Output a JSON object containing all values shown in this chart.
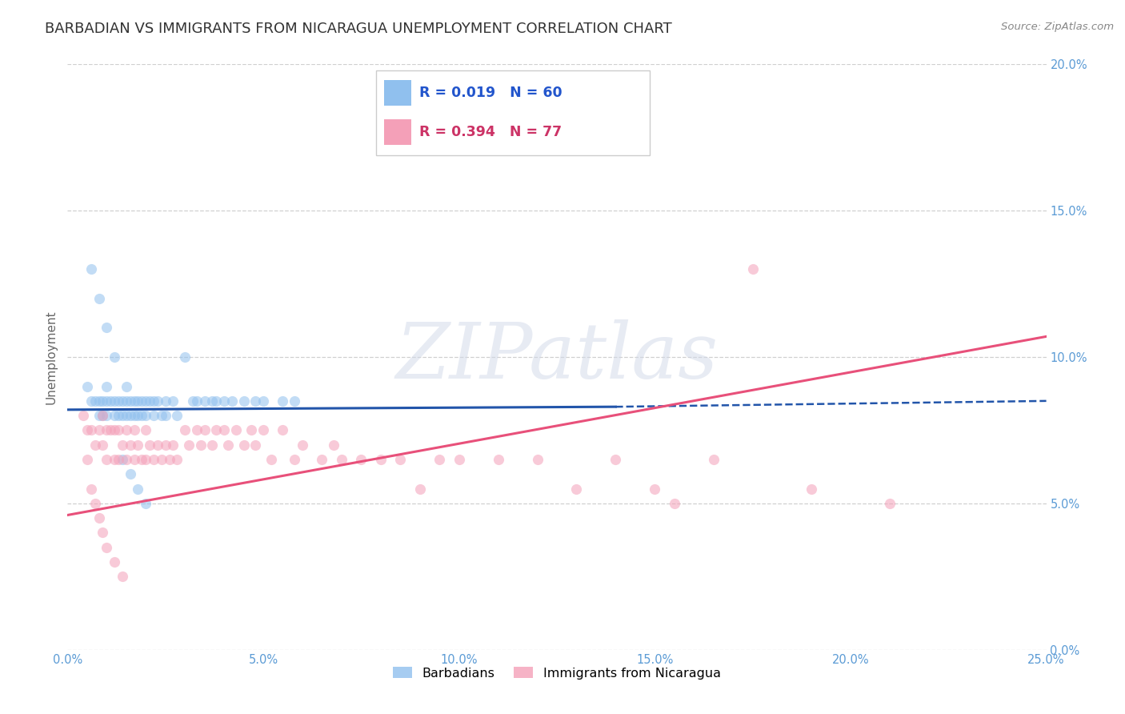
{
  "title": "BARBADIAN VS IMMIGRANTS FROM NICARAGUA UNEMPLOYMENT CORRELATION CHART",
  "source": "Source: ZipAtlas.com",
  "ylabel": "Unemployment",
  "xlim": [
    0.0,
    0.25
  ],
  "ylim": [
    0.0,
    0.2
  ],
  "xticks": [
    0.0,
    0.05,
    0.1,
    0.15,
    0.2,
    0.25
  ],
  "yticks": [
    0.0,
    0.05,
    0.1,
    0.15,
    0.2
  ],
  "xtick_labels": [
    "0.0%",
    "5.0%",
    "10.0%",
    "15.0%",
    "20.0%",
    "25.0%"
  ],
  "ytick_labels": [
    "0.0%",
    "5.0%",
    "10.0%",
    "15.0%",
    "20.0%"
  ],
  "legend_entries": [
    {
      "label": "Barbadians",
      "color": "#90c0ee",
      "R": "0.019",
      "N": "60"
    },
    {
      "label": "Immigrants from Nicaragua",
      "color": "#f4a0b8",
      "R": "0.394",
      "N": "77"
    }
  ],
  "blue_scatter_x": [
    0.005,
    0.006,
    0.007,
    0.008,
    0.008,
    0.009,
    0.009,
    0.01,
    0.01,
    0.01,
    0.011,
    0.012,
    0.012,
    0.013,
    0.013,
    0.014,
    0.014,
    0.015,
    0.015,
    0.015,
    0.016,
    0.016,
    0.017,
    0.017,
    0.018,
    0.018,
    0.019,
    0.019,
    0.02,
    0.02,
    0.021,
    0.022,
    0.022,
    0.023,
    0.024,
    0.025,
    0.025,
    0.027,
    0.028,
    0.03,
    0.032,
    0.033,
    0.035,
    0.037,
    0.038,
    0.04,
    0.042,
    0.045,
    0.048,
    0.05,
    0.055,
    0.058,
    0.006,
    0.008,
    0.01,
    0.012,
    0.014,
    0.016,
    0.018,
    0.02
  ],
  "blue_scatter_y": [
    0.09,
    0.085,
    0.085,
    0.085,
    0.08,
    0.085,
    0.08,
    0.09,
    0.085,
    0.08,
    0.085,
    0.085,
    0.08,
    0.085,
    0.08,
    0.085,
    0.08,
    0.09,
    0.085,
    0.08,
    0.085,
    0.08,
    0.085,
    0.08,
    0.085,
    0.08,
    0.085,
    0.08,
    0.085,
    0.08,
    0.085,
    0.085,
    0.08,
    0.085,
    0.08,
    0.085,
    0.08,
    0.085,
    0.08,
    0.1,
    0.085,
    0.085,
    0.085,
    0.085,
    0.085,
    0.085,
    0.085,
    0.085,
    0.085,
    0.085,
    0.085,
    0.085,
    0.13,
    0.12,
    0.11,
    0.1,
    0.065,
    0.06,
    0.055,
    0.05
  ],
  "pink_scatter_x": [
    0.004,
    0.005,
    0.006,
    0.007,
    0.008,
    0.009,
    0.009,
    0.01,
    0.01,
    0.011,
    0.012,
    0.012,
    0.013,
    0.013,
    0.014,
    0.015,
    0.015,
    0.016,
    0.017,
    0.017,
    0.018,
    0.019,
    0.02,
    0.02,
    0.021,
    0.022,
    0.023,
    0.024,
    0.025,
    0.026,
    0.027,
    0.028,
    0.03,
    0.031,
    0.033,
    0.034,
    0.035,
    0.037,
    0.038,
    0.04,
    0.041,
    0.043,
    0.045,
    0.047,
    0.048,
    0.05,
    0.052,
    0.055,
    0.058,
    0.06,
    0.065,
    0.068,
    0.07,
    0.075,
    0.08,
    0.085,
    0.09,
    0.095,
    0.1,
    0.11,
    0.12,
    0.13,
    0.14,
    0.15,
    0.155,
    0.165,
    0.175,
    0.19,
    0.21,
    0.005,
    0.006,
    0.007,
    0.008,
    0.009,
    0.01,
    0.012,
    0.014
  ],
  "pink_scatter_y": [
    0.08,
    0.075,
    0.075,
    0.07,
    0.075,
    0.08,
    0.07,
    0.075,
    0.065,
    0.075,
    0.075,
    0.065,
    0.075,
    0.065,
    0.07,
    0.075,
    0.065,
    0.07,
    0.075,
    0.065,
    0.07,
    0.065,
    0.075,
    0.065,
    0.07,
    0.065,
    0.07,
    0.065,
    0.07,
    0.065,
    0.07,
    0.065,
    0.075,
    0.07,
    0.075,
    0.07,
    0.075,
    0.07,
    0.075,
    0.075,
    0.07,
    0.075,
    0.07,
    0.075,
    0.07,
    0.075,
    0.065,
    0.075,
    0.065,
    0.07,
    0.065,
    0.07,
    0.065,
    0.065,
    0.065,
    0.065,
    0.055,
    0.065,
    0.065,
    0.065,
    0.065,
    0.055,
    0.065,
    0.055,
    0.05,
    0.065,
    0.13,
    0.055,
    0.05,
    0.065,
    0.055,
    0.05,
    0.045,
    0.04,
    0.035,
    0.03,
    0.025
  ],
  "blue_line_solid": {
    "x": [
      0.0,
      0.14
    ],
    "y": [
      0.082,
      0.083
    ],
    "color": "#2255aa",
    "lw": 2.2
  },
  "blue_line_dashed": {
    "x": [
      0.14,
      0.25
    ],
    "y": [
      0.083,
      0.085
    ],
    "color": "#2255aa",
    "lw": 1.8
  },
  "pink_line": {
    "x": [
      0.0,
      0.25
    ],
    "y": [
      0.046,
      0.107
    ],
    "color": "#e8507a",
    "lw": 2.2
  },
  "watermark_text": "ZIPatlas",
  "watermark_color": "#d0d8e8",
  "watermark_alpha": 0.5,
  "watermark_fontsize": 70,
  "background_color": "#ffffff",
  "grid_color": "#d0d0d0",
  "scatter_size": 90,
  "scatter_alpha": 0.55,
  "title_fontsize": 13,
  "axis_ylabel_fontsize": 11,
  "tick_fontsize": 10.5,
  "source_fontsize": 9.5
}
